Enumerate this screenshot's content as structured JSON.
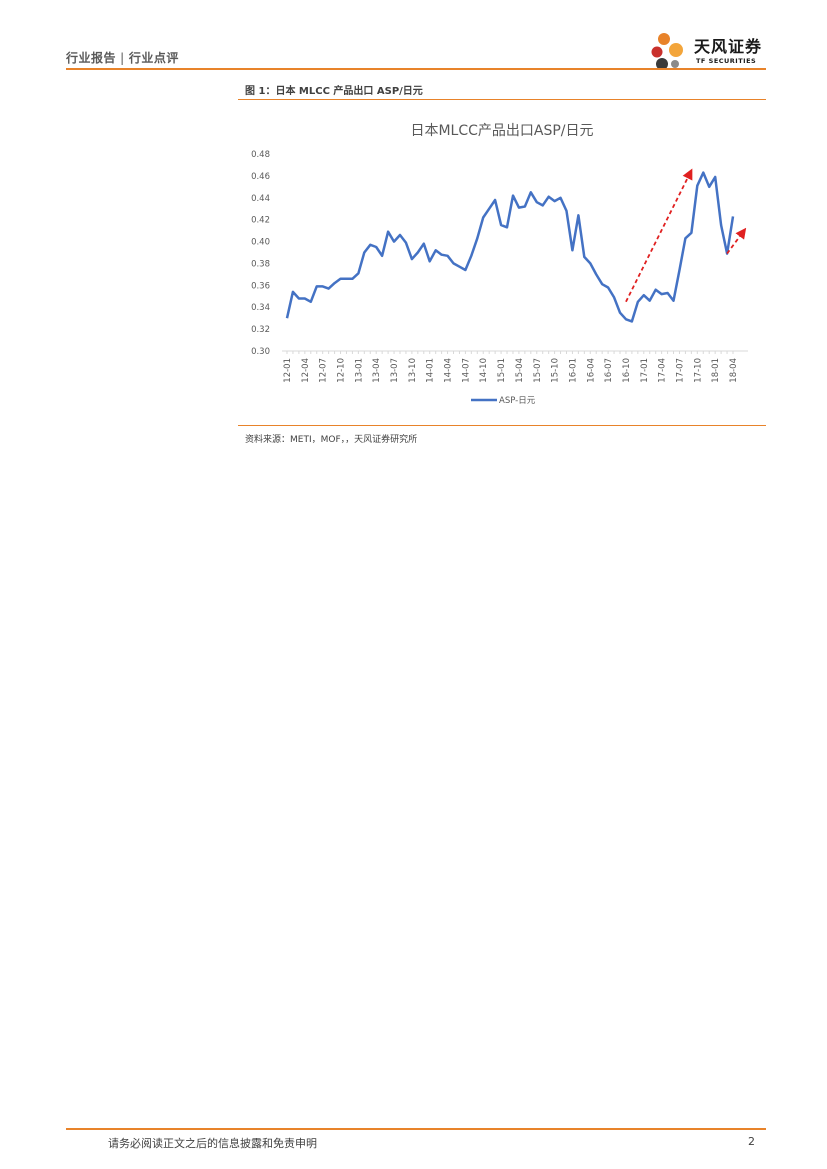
{
  "header": {
    "section": "行业报告",
    "separator": "|",
    "subsection": "行业点评"
  },
  "logo": {
    "name": "天风证券",
    "sub": "TF SECURITIES",
    "colors": [
      "#e8832a",
      "#c9302c",
      "#3a3a3a",
      "#f3a53b"
    ]
  },
  "figure": {
    "caption": "图 1：日本 MLCC 产品出口 ASP/日元",
    "source": "资料来源：METI，MOF，，天风证券研究所"
  },
  "chart_data": {
    "type": "line",
    "title": "日本MLCC产品出口ASP/日元",
    "xlabel": "",
    "ylabel": "",
    "ylim": [
      0.3,
      0.48
    ],
    "yticks": [
      "0.30",
      "0.32",
      "0.34",
      "0.36",
      "0.38",
      "0.40",
      "0.42",
      "0.44",
      "0.46",
      "0.48"
    ],
    "xtick_labels": [
      "12-01",
      "12-04",
      "12-07",
      "12-10",
      "13-01",
      "13-04",
      "13-07",
      "13-10",
      "14-01",
      "14-04",
      "14-07",
      "14-10",
      "15-01",
      "15-04",
      "15-07",
      "15-10",
      "16-01",
      "16-04",
      "16-07",
      "16-10",
      "17-01",
      "17-04",
      "17-07",
      "17-10",
      "18-01",
      "18-04"
    ],
    "grid": false,
    "legend_position": "bottom",
    "line_color": "#4472c4",
    "series": [
      {
        "name": "ASP-日元",
        "values": [
          0.33,
          0.354,
          0.348,
          0.348,
          0.345,
          0.359,
          0.359,
          0.357,
          0.362,
          0.366,
          0.366,
          0.366,
          0.371,
          0.39,
          0.397,
          0.395,
          0.387,
          0.409,
          0.4,
          0.406,
          0.399,
          0.384,
          0.39,
          0.398,
          0.382,
          0.392,
          0.388,
          0.387,
          0.38,
          0.377,
          0.374,
          0.387,
          0.403,
          0.422,
          0.43,
          0.438,
          0.415,
          0.413,
          0.442,
          0.431,
          0.432,
          0.445,
          0.436,
          0.433,
          0.441,
          0.437,
          0.44,
          0.428,
          0.392,
          0.424,
          0.386,
          0.38,
          0.37,
          0.361,
          0.358,
          0.349,
          0.335,
          0.329,
          0.327,
          0.345,
          0.351,
          0.346,
          0.356,
          0.352,
          0.353,
          0.346,
          0.374,
          0.403,
          0.408,
          0.451,
          0.463,
          0.45,
          0.459,
          0.415,
          0.389,
          0.423
        ]
      }
    ],
    "annotations": [
      {
        "type": "arrow",
        "style": "dashed",
        "color": "#e02020",
        "from": {
          "x": "16-10",
          "y": 0.345
        },
        "to": {
          "x": "17-09",
          "y": 0.465
        }
      },
      {
        "type": "arrow",
        "style": "dashed",
        "color": "#e02020",
        "from": {
          "x": "18-03",
          "y": 0.389
        },
        "to": {
          "x": "18-06",
          "y": 0.411
        }
      }
    ]
  },
  "footer": {
    "disclaimer": "请务必阅读正文之后的信息披露和免责申明",
    "page": "2"
  }
}
